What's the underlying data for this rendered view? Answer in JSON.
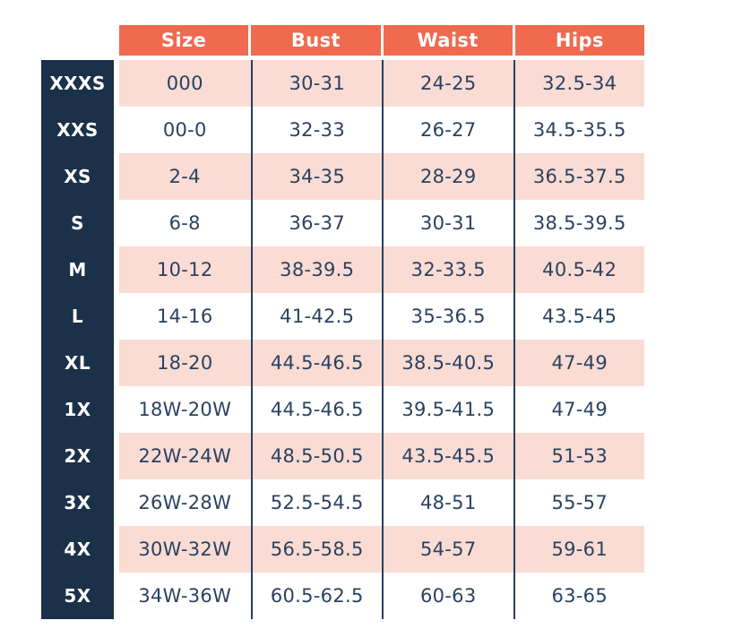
{
  "chart_data": {
    "type": "table",
    "columns": [
      "Size",
      "Bust",
      "Waist",
      "Hips"
    ],
    "rows": [
      {
        "label": "XXXS",
        "size": "000",
        "bust": "30-31",
        "waist": "24-25",
        "hips": "32.5-34"
      },
      {
        "label": "XXS",
        "size": "00-0",
        "bust": "32-33",
        "waist": "26-27",
        "hips": "34.5-35.5"
      },
      {
        "label": "XS",
        "size": "2-4",
        "bust": "34-35",
        "waist": "28-29",
        "hips": "36.5-37.5"
      },
      {
        "label": "S",
        "size": "6-8",
        "bust": "36-37",
        "waist": "30-31",
        "hips": "38.5-39.5"
      },
      {
        "label": "M",
        "size": "10-12",
        "bust": "38-39.5",
        "waist": "32-33.5",
        "hips": "40.5-42"
      },
      {
        "label": "L",
        "size": "14-16",
        "bust": "41-42.5",
        "waist": "35-36.5",
        "hips": "43.5-45"
      },
      {
        "label": "XL",
        "size": "18-20",
        "bust": "44.5-46.5",
        "waist": "38.5-40.5",
        "hips": "47-49"
      },
      {
        "label": "1X",
        "size": "18W-20W",
        "bust": "44.5-46.5",
        "waist": "39.5-41.5",
        "hips": "47-49"
      },
      {
        "label": "2X",
        "size": "22W-24W",
        "bust": "48.5-50.5",
        "waist": "43.5-45.5",
        "hips": "51-53"
      },
      {
        "label": "3X",
        "size": "26W-28W",
        "bust": "52.5-54.5",
        "waist": "48-51",
        "hips": "55-57"
      },
      {
        "label": "4X",
        "size": "30W-32W",
        "bust": "56.5-58.5",
        "waist": "54-57",
        "hips": "59-61"
      },
      {
        "label": "5X",
        "size": "34W-36W",
        "bust": "60.5-62.5",
        "waist": "60-63",
        "hips": "63-65"
      }
    ]
  },
  "colors": {
    "header_bg": "#EF6A4F",
    "header_text": "#FFFFFF",
    "sidebar_bg": "#1B3049",
    "sidebar_text": "#FFFFFF",
    "row_alt_bg": "#FADCD4",
    "row_bg": "#FFFFFF",
    "divider": "#27405F",
    "cell_text": "#2A4260",
    "page_bg": "#FFFFFF"
  }
}
